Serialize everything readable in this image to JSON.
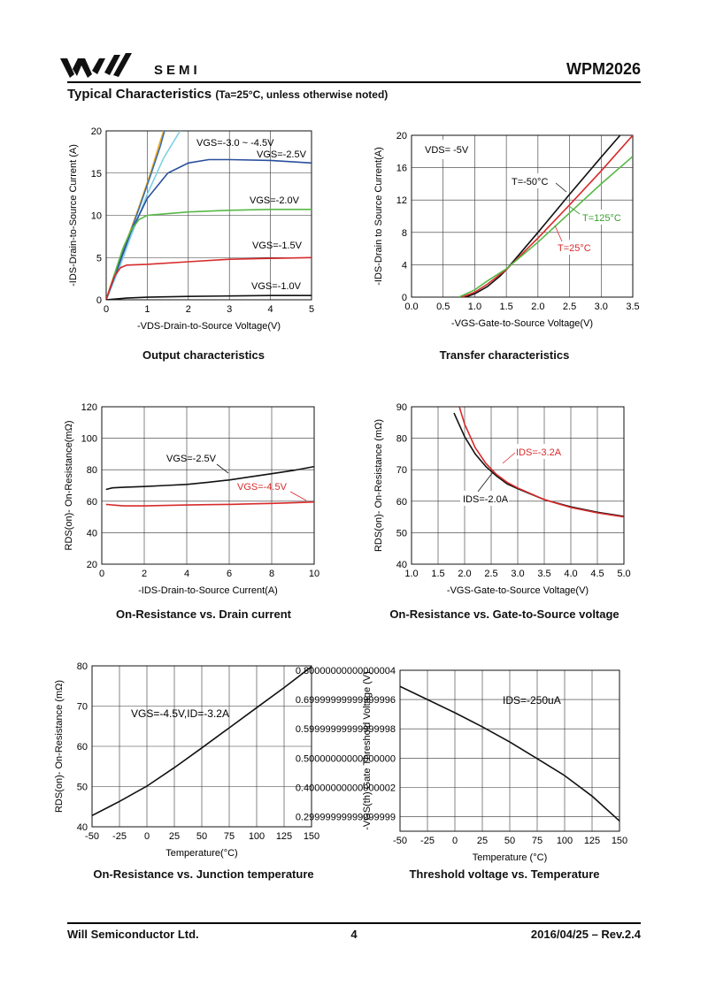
{
  "header": {
    "logo_text": "SEMI",
    "part_number": "WPM2026",
    "section_title": "Typical Characteristics",
    "section_condition": "(Ta=25°C, unless otherwise noted)"
  },
  "footer": {
    "company": "Will  Semiconductor  Ltd.",
    "page": "4",
    "date_rev": "2016/04/25  –  Rev.2.4"
  },
  "chart_data": [
    {
      "id": "output",
      "type": "line",
      "title": "Output characteristics",
      "xlabel": "-VDS-Drain-to-Source Voltage(V)",
      "ylabel": "-IDS-Drain-to-Source Current (A)",
      "xlim": [
        0,
        5
      ],
      "ylim": [
        0,
        20
      ],
      "xticks": [
        0,
        1,
        2,
        3,
        4,
        5
      ],
      "yticks": [
        0,
        5,
        10,
        15,
        20
      ],
      "grid": true,
      "series": [
        {
          "name": "VGS=-4.5V",
          "color": "#f0a81a",
          "x": [
            0,
            0.2,
            0.5,
            0.8,
            1.1,
            1.3,
            1.4
          ],
          "y": [
            0,
            3,
            7,
            11,
            15.3,
            18.5,
            20
          ]
        },
        {
          "name": "VGS=-3.0V",
          "color": "#3a6fb0",
          "x": [
            0,
            0.2,
            0.5,
            0.8,
            1.1,
            1.32,
            1.42
          ],
          "y": [
            0,
            2.8,
            6.8,
            10.8,
            15,
            18.2,
            20
          ]
        },
        {
          "name": "VGS=-3.5V",
          "color": "#7ecfe6",
          "x": [
            0,
            0.3,
            0.6,
            1.0,
            1.4,
            1.8
          ],
          "y": [
            0,
            3.5,
            7.5,
            12.5,
            16.8,
            20
          ]
        },
        {
          "name": "VGS=-2.5V",
          "color": "#2a4f9c",
          "x": [
            0,
            0.3,
            0.6,
            1.0,
            1.5,
            2.0,
            2.5,
            3.0,
            4.0,
            5.0
          ],
          "y": [
            0,
            4,
            8,
            12,
            15,
            16.2,
            16.6,
            16.6,
            16.5,
            16.2
          ]
        },
        {
          "name": "VGS=-2.0V",
          "color": "#58b846",
          "x": [
            0,
            0.2,
            0.4,
            0.6,
            0.8,
            1.0,
            1.5,
            2.0,
            3.0,
            4.0,
            5.0
          ],
          "y": [
            0,
            3,
            6,
            8.2,
            9.5,
            10,
            10.2,
            10.4,
            10.6,
            10.7,
            10.7
          ]
        },
        {
          "name": "VGS=-1.5V",
          "color": "#d82a2a",
          "x": [
            0,
            0.1,
            0.2,
            0.35,
            0.5,
            1.0,
            2.0,
            3.0,
            4.0,
            5.0
          ],
          "y": [
            0,
            1.5,
            2.8,
            3.8,
            4.1,
            4.2,
            4.5,
            4.8,
            4.9,
            5.0
          ]
        },
        {
          "name": "VGS=-1.0V",
          "color": "#111111",
          "x": [
            0,
            0.5,
            1,
            2,
            3,
            4,
            5
          ],
          "y": [
            0,
            0.2,
            0.3,
            0.4,
            0.45,
            0.5,
            0.5
          ]
        }
      ],
      "annotations": [
        "VGS=-3.0 ~ -4.5V",
        "VGS=-2.5V",
        "VGS=-2.0V",
        "VGS=-1.5V",
        "VGS=-1.0V"
      ]
    },
    {
      "id": "transfer",
      "type": "line",
      "title": "Transfer characteristics",
      "xlabel": "-VGS-Gate-to-Source Voltage(V)",
      "ylabel": "-IDS-Drain to Source Current(A)",
      "xlim": [
        0,
        3.5
      ],
      "ylim": [
        0,
        20
      ],
      "xticks": [
        0.0,
        0.5,
        1.0,
        1.5,
        2.0,
        2.5,
        3.0,
        3.5
      ],
      "yticks": [
        0,
        4,
        8,
        12,
        16,
        20
      ],
      "grid": true,
      "series": [
        {
          "name": "T=-50°C",
          "color": "#111111",
          "x": [
            0.85,
            1.0,
            1.2,
            1.4,
            1.5,
            2.0,
            2.5,
            3.0,
            3.3
          ],
          "y": [
            0,
            0.4,
            1.3,
            2.6,
            3.4,
            8,
            12.7,
            17.3,
            20
          ]
        },
        {
          "name": "T=25°C",
          "color": "#d82a2a",
          "x": [
            0.8,
            1.0,
            1.2,
            1.4,
            1.5,
            2.0,
            2.5,
            3.0,
            3.5
          ],
          "y": [
            0,
            0.6,
            1.6,
            2.8,
            3.4,
            7.3,
            11.4,
            15.6,
            20
          ]
        },
        {
          "name": "T=125°C",
          "color": "#58b846",
          "x": [
            0.75,
            1.0,
            1.2,
            1.4,
            1.5,
            2.0,
            2.5,
            3.0,
            3.5
          ],
          "y": [
            0,
            0.9,
            2.0,
            3.0,
            3.5,
            6.8,
            10.4,
            14,
            17.4
          ]
        }
      ],
      "annotations": [
        "VDS= -5V",
        "T=-50°C",
        "T=125°C",
        "T=25°C"
      ]
    },
    {
      "id": "ron-id",
      "type": "line",
      "title": "On-Resistance vs. Drain current",
      "xlabel": "-IDS-Drain-to-Source Current(A)",
      "ylabel": "RDS(on)- On-Resistance(mΩ)",
      "xlim": [
        0,
        10
      ],
      "ylim": [
        20,
        120
      ],
      "xticks": [
        0,
        2,
        4,
        6,
        8,
        10
      ],
      "yticks": [
        20,
        40,
        60,
        80,
        100,
        120
      ],
      "grid": true,
      "series": [
        {
          "name": "VGS=-2.5V",
          "color": "#111111",
          "x": [
            0.2,
            0.5,
            1,
            2,
            3,
            4,
            5,
            6,
            7,
            8,
            9,
            10
          ],
          "y": [
            67.5,
            68.5,
            68.8,
            69.3,
            70,
            70.7,
            72,
            73.5,
            75.5,
            77.5,
            79.5,
            82
          ]
        },
        {
          "name": "VGS=-4.5V",
          "color": "#d82a2a",
          "x": [
            0.2,
            1,
            2,
            3,
            4,
            5,
            6,
            7,
            8,
            9,
            10
          ],
          "y": [
            58,
            57,
            57,
            57.3,
            57.6,
            57.8,
            58,
            58.3,
            58.6,
            59,
            59.5
          ]
        }
      ],
      "annotations": [
        "VGS=-2.5V",
        "VGS=-4.5V"
      ]
    },
    {
      "id": "ron-vgs",
      "type": "line",
      "title": "On-Resistance vs. Gate-to-Source voltage",
      "xlabel": "-VGS-Gate-to-Source Voltage(V)",
      "ylabel": "RDS(on)- On-Resistance (mΩ)",
      "xlim": [
        1.0,
        5.0
      ],
      "ylim": [
        40,
        90
      ],
      "xticks": [
        1.0,
        1.5,
        2.0,
        2.5,
        3.0,
        3.5,
        4.0,
        4.5,
        5.0
      ],
      "yticks": [
        40,
        50,
        60,
        70,
        80,
        90
      ],
      "grid": true,
      "series": [
        {
          "name": "IDS=-2.0A",
          "color": "#111111",
          "x": [
            1.8,
            2.0,
            2.2,
            2.4,
            2.6,
            2.8,
            3.0,
            3.5,
            4.0,
            4.5,
            5.0
          ],
          "y": [
            88,
            80.5,
            75,
            71,
            68,
            65.5,
            64,
            60.5,
            58.2,
            56.5,
            55.2
          ]
        },
        {
          "name": "IDS=-3.2A",
          "color": "#d82a2a",
          "x": [
            1.9,
            2.0,
            2.2,
            2.4,
            2.6,
            2.8,
            3.0,
            3.5,
            4.0,
            4.5,
            5.0
          ],
          "y": [
            90,
            84.5,
            77,
            72,
            68.5,
            66,
            64.2,
            60.5,
            58,
            56.3,
            55
          ]
        }
      ],
      "annotations": [
        "IDS=-3.2A",
        "IDS=-2.0A"
      ]
    },
    {
      "id": "ron-temp",
      "type": "line",
      "title": "On-Resistance vs. Junction temperature",
      "xlabel": "Temperature(°C)",
      "ylabel": "RDS(on)- On-Resistance (mΩ)",
      "xlim": [
        -50,
        150
      ],
      "ylim": [
        40,
        80
      ],
      "xticks": [
        -50,
        -25,
        0,
        25,
        50,
        75,
        100,
        125,
        150
      ],
      "yticks": [
        40,
        50,
        60,
        70,
        80
      ],
      "grid": true,
      "series": [
        {
          "name": "VGS=-4.5V,ID=-3.2A",
          "color": "#111111",
          "x": [
            -50,
            -25,
            0,
            25,
            50,
            75,
            100,
            125,
            150
          ],
          "y": [
            42.8,
            46.3,
            50.1,
            54.7,
            59.6,
            64.6,
            69.6,
            74.6,
            79.8
          ]
        }
      ],
      "annotations": [
        "VGS=-4.5V,ID=-3.2A"
      ]
    },
    {
      "id": "vth-temp",
      "type": "line",
      "title": "Threshold voltage vs. Temperature",
      "xlabel": "Temperature (°C)",
      "ylabel": "-VGS(th) Gate Threshold Voltage (V)",
      "xlim": [
        -50,
        150
      ],
      "ylim": [
        0.25,
        0.8
      ],
      "xticks": [
        -50,
        -25,
        0,
        25,
        50,
        75,
        100,
        125,
        150
      ],
      "yticks": [
        0.3,
        0.4,
        0.5,
        0.6,
        0.7,
        0.8
      ],
      "grid": true,
      "series": [
        {
          "name": "IDS=-250uA",
          "color": "#111111",
          "x": [
            -50,
            -25,
            0,
            25,
            50,
            75,
            100,
            125,
            150
          ],
          "y": [
            0.745,
            0.7,
            0.655,
            0.607,
            0.555,
            0.498,
            0.44,
            0.37,
            0.285
          ]
        }
      ],
      "annotations": [
        "IDS=-250uA"
      ]
    }
  ]
}
